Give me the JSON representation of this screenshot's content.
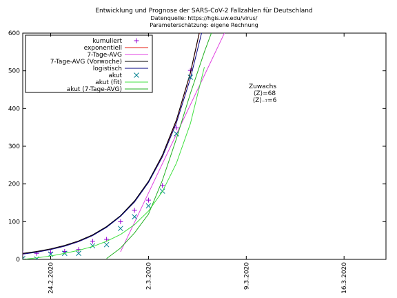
{
  "chart_data": {
    "type": "line",
    "title": "Entwicklung und Prognose der SARS-CoV-2 Fallzahlen für Deutschland",
    "subtitle": "Datenquelle: https://hgis.uw.edu/virus/",
    "subtitle2": "Parameterschätzung: eigene Rechnung",
    "annotation": {
      "title": "Zuwachs",
      "lines": [
        "⟨Z⟩=68",
        "⟨Z⟩₋₇=6"
      ]
    },
    "xlim": [
      "2020-02-22",
      "2020-03-19"
    ],
    "xticks": [
      {
        "value": "2020-02-24",
        "label": "24.2.2020"
      },
      {
        "value": "2020-03-02",
        "label": "2.3.2020"
      },
      {
        "value": "2020-03-09",
        "label": "9.3.2020"
      },
      {
        "value": "2020-03-16",
        "label": "16.3.2020"
      }
    ],
    "ylim": [
      0,
      600
    ],
    "yticks": [
      0,
      100,
      200,
      300,
      400,
      500,
      600
    ],
    "legend": "top-left",
    "series": [
      {
        "name": "kumuliert",
        "color": "#9400d3",
        "style": "plus",
        "x": [
          "2020-02-22",
          "2020-02-23",
          "2020-02-24",
          "2020-02-25",
          "2020-02-26",
          "2020-02-27",
          "2020-02-28",
          "2020-02-29",
          "2020-03-01",
          "2020-03-02",
          "2020-03-03",
          "2020-03-04",
          "2020-03-05"
        ],
        "values": [
          16,
          16,
          18,
          21,
          26,
          48,
          53,
          100,
          130,
          157,
          196,
          349,
          501
        ]
      },
      {
        "name": "exponentiell",
        "color": "#e51e10",
        "style": "line",
        "x": [
          "2020-02-22",
          "2020-02-23",
          "2020-02-24",
          "2020-02-25",
          "2020-02-26",
          "2020-02-27",
          "2020-02-28",
          "2020-02-29",
          "2020-03-01",
          "2020-03-02",
          "2020-03-03",
          "2020-03-04",
          "2020-03-05",
          "2020-03-06"
        ],
        "values": [
          15,
          20,
          27,
          36,
          48,
          64,
          86,
          115,
          153,
          206,
          275,
          368,
          493,
          660
        ]
      },
      {
        "name": "7-Tage-AVG",
        "color": "#e040e0",
        "style": "line",
        "x": [
          "2020-02-29",
          "2020-03-01",
          "2020-03-02",
          "2020-03-03",
          "2020-03-04",
          "2020-03-05",
          "2020-03-06",
          "2020-03-07",
          "2020-03-08"
        ],
        "values": [
          20,
          98,
          176,
          254,
          332,
          410,
          488,
          566,
          644
        ]
      },
      {
        "name": "7-Tage-AVG (Vorwoche)",
        "color": "#000000",
        "style": "line",
        "x": [
          "2020-02-22",
          "2020-02-23",
          "2020-02-24",
          "2020-02-25",
          "2020-02-26",
          "2020-02-27",
          "2020-02-28",
          "2020-02-29",
          "2020-03-01",
          "2020-03-02",
          "2020-03-03",
          "2020-03-04",
          "2020-03-05",
          "2020-03-06"
        ],
        "values": [
          16,
          21,
          28,
          37,
          49,
          65,
          87,
          116,
          155,
          207,
          277,
          370,
          495,
          662
        ]
      },
      {
        "name": "logistisch",
        "color": "#000080",
        "style": "line",
        "x": [
          "2020-02-22",
          "2020-02-23",
          "2020-02-24",
          "2020-02-25",
          "2020-02-26",
          "2020-02-27",
          "2020-02-28",
          "2020-02-29",
          "2020-03-01",
          "2020-03-02",
          "2020-03-03",
          "2020-03-04",
          "2020-03-05",
          "2020-03-06"
        ],
        "values": [
          14,
          19,
          26,
          35,
          47,
          63,
          85,
          114,
          152,
          204,
          272,
          362,
          480,
          630
        ]
      },
      {
        "name": "akut",
        "color": "#00808f",
        "style": "cross",
        "x": [
          "2020-02-22",
          "2020-02-23",
          "2020-02-24",
          "2020-02-25",
          "2020-02-26",
          "2020-02-27",
          "2020-02-28",
          "2020-02-29",
          "2020-03-01",
          "2020-03-02",
          "2020-03-03",
          "2020-03-04",
          "2020-03-05"
        ],
        "values": [
          2,
          1,
          14,
          16,
          16,
          36,
          39,
          82,
          113,
          142,
          181,
          333,
          483
        ]
      },
      {
        "name": "akut (fit)",
        "color": "#40e040",
        "style": "line",
        "x": [
          "2020-02-22",
          "2020-02-23",
          "2020-02-24",
          "2020-02-25",
          "2020-02-26",
          "2020-02-27",
          "2020-02-28",
          "2020-02-29",
          "2020-03-01",
          "2020-03-02",
          "2020-03-03",
          "2020-03-04",
          "2020-03-05",
          "2020-03-06"
        ],
        "values": [
          0,
          4,
          9,
          16,
          24,
          34,
          48,
          66,
          92,
          128,
          180,
          255,
          360,
          510
        ]
      },
      {
        "name": "akut (7-Tage-AVG)",
        "color": "#20b020",
        "style": "line",
        "x": [
          "2020-02-28",
          "2020-02-29",
          "2020-03-01",
          "2020-03-02",
          "2020-03-03",
          "2020-03-04",
          "2020-03-05",
          "2020-03-06",
          "2020-03-07"
        ],
        "values": [
          2,
          30,
          70,
          120,
          210,
          320,
          440,
          550,
          650
        ]
      }
    ]
  }
}
